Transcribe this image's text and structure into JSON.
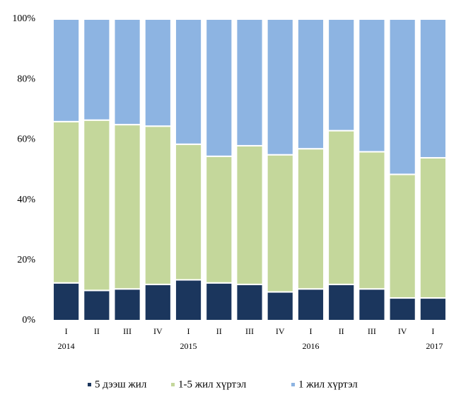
{
  "chart_data": {
    "type": "stacked_bar_100",
    "categories": [
      "I",
      "II",
      "III",
      "IV",
      "I",
      "II",
      "III",
      "IV",
      "I",
      "II",
      "III",
      "IV",
      "I"
    ],
    "year_labels": [
      "2014",
      null,
      null,
      null,
      "2015",
      null,
      null,
      null,
      "2016",
      null,
      null,
      null,
      "2017"
    ],
    "series": [
      {
        "name": "5 дээш жил",
        "color": "#1b365d",
        "values": [
          12.5,
          10,
          10.5,
          12,
          13.5,
          12.5,
          12,
          9.5,
          10.5,
          12,
          10.5,
          7.5,
          7.5
        ]
      },
      {
        "name": "1-5 жил хүртэл",
        "color": "#c4d79b",
        "values": [
          53.5,
          56.5,
          54.5,
          52.5,
          45,
          42,
          46,
          45.5,
          46.5,
          51,
          45.5,
          41,
          46.5
        ]
      },
      {
        "name": "1 жил хүртэл",
        "color": "#8db4e2",
        "values": [
          34,
          33.5,
          35,
          35.5,
          41.5,
          45.5,
          42,
          45,
          43,
          37,
          44,
          51.5,
          46
        ]
      }
    ],
    "ylim": [
      0,
      100
    ],
    "yticks": [
      {
        "value": 0,
        "label": "0%"
      },
      {
        "value": 20,
        "label": "20%"
      },
      {
        "value": 40,
        "label": "40%"
      },
      {
        "value": 60,
        "label": "60%"
      },
      {
        "value": 80,
        "label": "80%"
      },
      {
        "value": 100,
        "label": "100%"
      }
    ],
    "legend": "bottom"
  }
}
